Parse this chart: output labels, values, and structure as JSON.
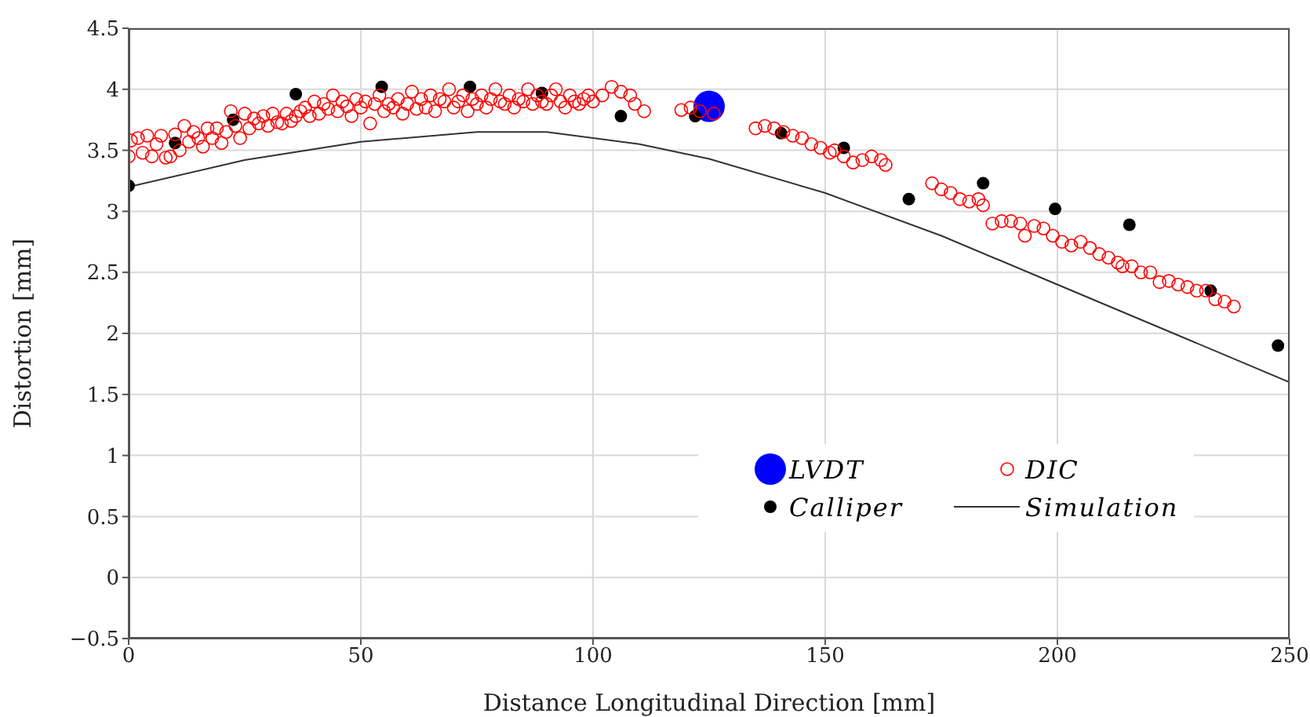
{
  "chart_data": {
    "type": "scatter",
    "xlabel": "Distance Longitudinal Direction [mm]",
    "ylabel": "Distortion [mm]",
    "xlim": [
      0,
      250
    ],
    "xticks": [
      0,
      50,
      100,
      150,
      200,
      250
    ],
    "ylim": [
      -0.5,
      4.5
    ],
    "yticks": [
      -0.5,
      0,
      0.5,
      1,
      1.5,
      2,
      2.5,
      3,
      3.5,
      4,
      4.5
    ],
    "grid": true,
    "legend": "bottom right",
    "series": [
      {
        "name": "LVDT",
        "marker": "circle-large",
        "color": "#0000ff",
        "x": [
          125
        ],
        "values": [
          3.86
        ]
      },
      {
        "name": "Calliper",
        "marker": "circle",
        "color": "#000000",
        "x": [
          0,
          10,
          22.5,
          36,
          54.5,
          73.5,
          89,
          106,
          122,
          140.5,
          154,
          168,
          184,
          199.5,
          215.5,
          233,
          247.5
        ],
        "values": [
          3.21,
          3.56,
          3.75,
          3.96,
          4.02,
          4.02,
          3.97,
          3.78,
          3.78,
          3.64,
          3.52,
          3.1,
          3.23,
          3.02,
          2.89,
          2.35,
          1.9
        ]
      },
      {
        "name": "DIC",
        "marker": "circle-open",
        "color": "#ff0000",
        "x": [
          0,
          0.5,
          2,
          3,
          4,
          5,
          6,
          7,
          8,
          9,
          10,
          11,
          12,
          13,
          14,
          15,
          16,
          17,
          18,
          19,
          20,
          21,
          22,
          23,
          24,
          25,
          26,
          27,
          28,
          29,
          30,
          31,
          32,
          33,
          34,
          35,
          36,
          37,
          38,
          39,
          40,
          41,
          42,
          43,
          44,
          45,
          46,
          47,
          48,
          49,
          50,
          51,
          52,
          53,
          54,
          55,
          56,
          57,
          58,
          59,
          60,
          61,
          62,
          63,
          64,
          65,
          66,
          67,
          68,
          69,
          70,
          71,
          72,
          73,
          74,
          75,
          76,
          77,
          78,
          79,
          80,
          81,
          82,
          83,
          84,
          85,
          86,
          87,
          88,
          89,
          90,
          91,
          92,
          93,
          94,
          95,
          96,
          97,
          98,
          99,
          100,
          102,
          104,
          106,
          108,
          109,
          111,
          119,
          121,
          123,
          126,
          135,
          137,
          139,
          141,
          143,
          145,
          147,
          149,
          151,
          152,
          154,
          156,
          158,
          160,
          162,
          163,
          173,
          175,
          177,
          179,
          181,
          183,
          184,
          186,
          188,
          190,
          192,
          193,
          195,
          197,
          199,
          201,
          203,
          205,
          207,
          209,
          211,
          213,
          214,
          216,
          218,
          220,
          222,
          224,
          226,
          228,
          230,
          232,
          234,
          236,
          238
        ],
        "values": [
          3.45,
          3.58,
          3.6,
          3.48,
          3.62,
          3.45,
          3.55,
          3.62,
          3.44,
          3.45,
          3.63,
          3.5,
          3.7,
          3.57,
          3.65,
          3.6,
          3.53,
          3.68,
          3.6,
          3.68,
          3.56,
          3.65,
          3.82,
          3.7,
          3.6,
          3.8,
          3.68,
          3.76,
          3.72,
          3.78,
          3.7,
          3.8,
          3.73,
          3.72,
          3.8,
          3.74,
          3.78,
          3.82,
          3.85,
          3.78,
          3.9,
          3.8,
          3.88,
          3.84,
          3.95,
          3.82,
          3.9,
          3.86,
          3.78,
          3.92,
          3.85,
          3.9,
          3.72,
          3.88,
          3.95,
          3.82,
          3.88,
          3.85,
          3.92,
          3.8,
          3.88,
          3.98,
          3.84,
          3.92,
          3.85,
          3.95,
          3.82,
          3.92,
          3.9,
          4.0,
          3.85,
          3.9,
          3.95,
          3.82,
          3.92,
          3.88,
          3.95,
          3.85,
          3.92,
          4.0,
          3.9,
          3.88,
          3.95,
          3.85,
          3.92,
          3.9,
          4.0,
          3.88,
          3.95,
          3.9,
          3.88,
          3.95,
          4.0,
          3.9,
          3.85,
          3.95,
          3.9,
          3.88,
          3.92,
          3.95,
          3.9,
          3.95,
          4.02,
          3.98,
          3.95,
          3.88,
          3.82,
          3.83,
          3.85,
          3.82,
          3.8,
          3.68,
          3.7,
          3.68,
          3.65,
          3.62,
          3.6,
          3.55,
          3.52,
          3.48,
          3.5,
          3.45,
          3.4,
          3.42,
          3.45,
          3.42,
          3.38,
          3.23,
          3.18,
          3.15,
          3.1,
          3.08,
          3.1,
          3.05,
          2.9,
          2.92,
          2.92,
          2.9,
          2.8,
          2.88,
          2.86,
          2.8,
          2.75,
          2.72,
          2.75,
          2.7,
          2.65,
          2.62,
          2.58,
          2.55,
          2.55,
          2.5,
          2.5,
          2.42,
          2.43,
          2.4,
          2.38,
          2.35,
          2.35,
          2.28,
          2.26,
          2.22
        ]
      },
      {
        "name": "Simulation",
        "type": "line",
        "marker": "none",
        "color": "#333333",
        "x": [
          0,
          25,
          50,
          75,
          90,
          110,
          125,
          150,
          175,
          200,
          225,
          250
        ],
        "values": [
          3.2,
          3.42,
          3.57,
          3.65,
          3.65,
          3.55,
          3.43,
          3.15,
          2.8,
          2.4,
          2.0,
          1.6
        ]
      }
    ]
  }
}
